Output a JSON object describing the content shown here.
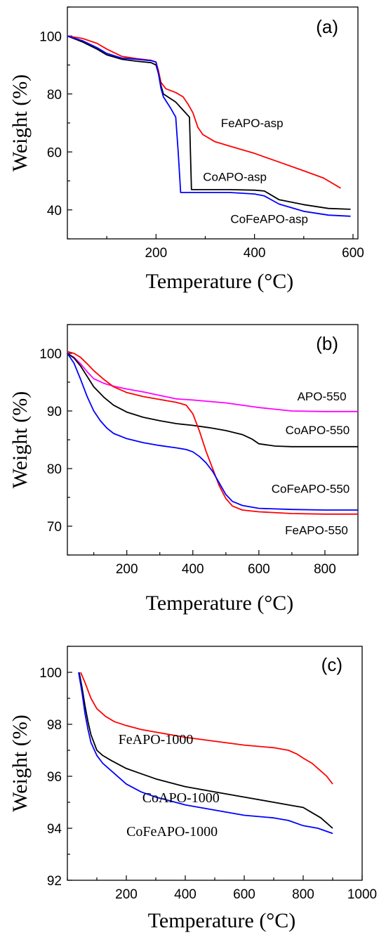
{
  "chart_data": [
    {
      "id": "a",
      "type": "line",
      "panel_label": "(a)",
      "xlabel": "Temperature",
      "xunit": "(°C)",
      "ylabel": "Weight (%)",
      "xlim": [
        20,
        610
      ],
      "ylim": [
        30,
        110
      ],
      "xticks": [
        200,
        400,
        600
      ],
      "yticks": [
        40,
        60,
        80,
        100
      ],
      "label_font": "sans",
      "series": [
        {
          "name": "FeAPO-asp",
          "color": "#ff0000",
          "x": [
            20,
            50,
            80,
            100,
            130,
            160,
            190,
            200,
            205,
            210,
            220,
            240,
            255,
            265,
            275,
            285,
            295,
            320,
            360,
            400,
            450,
            500,
            540,
            575
          ],
          "y": [
            100,
            99.2,
            97.5,
            95.5,
            93,
            92.2,
            91.6,
            91,
            88,
            84,
            81.8,
            80.5,
            79,
            76.5,
            73.5,
            68.5,
            66,
            63.5,
            61.5,
            59.5,
            56.5,
            53.5,
            51,
            47.5
          ]
        },
        {
          "name": "CoAPO-asp",
          "color": "#000000",
          "x": [
            20,
            50,
            80,
            100,
            130,
            160,
            190,
            200,
            205,
            210,
            215,
            240,
            260,
            268,
            272,
            280,
            300,
            350,
            400,
            420,
            450,
            500,
            550,
            595
          ],
          "y": [
            100,
            98,
            95.5,
            93.5,
            92,
            91.3,
            90.8,
            90,
            87,
            83,
            80,
            77.2,
            73.5,
            72,
            47,
            47,
            47,
            47,
            46.8,
            46.5,
            43.5,
            41.8,
            40.5,
            40.2
          ]
        },
        {
          "name": "CoFeAPO-asp",
          "color": "#0000ff",
          "x": [
            20,
            50,
            80,
            100,
            130,
            160,
            190,
            200,
            205,
            210,
            215,
            230,
            240,
            245,
            250,
            255,
            300,
            350,
            400,
            420,
            450,
            500,
            550,
            595
          ],
          "y": [
            100,
            98.4,
            96,
            94,
            92.4,
            92,
            91.5,
            91,
            87,
            82,
            79,
            75,
            72,
            60,
            46,
            46,
            46,
            46,
            45.5,
            44.8,
            42,
            39.5,
            38.2,
            37.8
          ]
        }
      ],
      "labels": [
        {
          "text": "FeAPO-asp",
          "x": 395,
          "y": 68.5
        },
        {
          "text": "CoAPO-asp",
          "x": 360,
          "y": 50
        },
        {
          "text": "CoFeAPO-asp",
          "x": 430,
          "y": 35.5
        }
      ]
    },
    {
      "id": "b",
      "type": "line",
      "panel_label": "(b)",
      "xlabel": "Temperature",
      "xunit": "(°C)",
      "ylabel": "Weight (%)",
      "xlim": [
        20,
        900
      ],
      "ylim": [
        65,
        105
      ],
      "xticks": [
        200,
        400,
        600,
        800
      ],
      "yticks": [
        70,
        80,
        90,
        100
      ],
      "label_font": "sans",
      "series": [
        {
          "name": "APO-550",
          "color": "#ff00ff",
          "x": [
            20,
            40,
            60,
            80,
            100,
            130,
            160,
            200,
            250,
            300,
            350,
            400,
            500,
            600,
            700,
            800,
            900
          ],
          "y": [
            100,
            99.3,
            98.2,
            96.8,
            95.6,
            94.8,
            94.3,
            93.8,
            93.3,
            92.7,
            92.1,
            91.9,
            91.4,
            90.6,
            90.0,
            89.9,
            89.9
          ]
        },
        {
          "name": "CoAPO-550",
          "color": "#000000",
          "x": [
            20,
            40,
            60,
            80,
            100,
            130,
            160,
            200,
            250,
            300,
            350,
            400,
            450,
            500,
            550,
            580,
            600,
            650,
            700,
            800,
            900
          ],
          "y": [
            100,
            99.2,
            97.8,
            96,
            94.2,
            92.4,
            91,
            89.8,
            88.9,
            88.3,
            87.8,
            87.5,
            87.1,
            86.6,
            85.9,
            85.1,
            84.3,
            83.9,
            83.8,
            83.8,
            83.8
          ]
        },
        {
          "name": "FeAPO-550",
          "color": "#ff0000",
          "x": [
            20,
            40,
            60,
            80,
            100,
            130,
            160,
            200,
            250,
            300,
            350,
            380,
            400,
            420,
            440,
            460,
            480,
            500,
            520,
            550,
            600,
            700,
            800,
            900
          ],
          "y": [
            100.3,
            100,
            99.3,
            98.2,
            97,
            95.5,
            94.2,
            93.2,
            92.5,
            92,
            91.5,
            91,
            89.5,
            86.5,
            83,
            80,
            77,
            74.8,
            73.5,
            72.8,
            72.5,
            72.2,
            72.1,
            72.1
          ]
        },
        {
          "name": "CoFeAPO-550",
          "color": "#0000ff",
          "x": [
            20,
            40,
            60,
            80,
            100,
            120,
            140,
            160,
            200,
            250,
            300,
            350,
            380,
            400,
            420,
            440,
            460,
            480,
            500,
            520,
            550,
            600,
            700,
            800,
            900
          ],
          "y": [
            100,
            98.3,
            95.5,
            92.5,
            90,
            88.3,
            87,
            86.1,
            85.2,
            84.5,
            84,
            83.6,
            83.3,
            82.9,
            82.1,
            81,
            79.5,
            77.5,
            75.5,
            74.3,
            73.6,
            73.1,
            72.9,
            72.8,
            72.8
          ]
        }
      ],
      "labels": [
        {
          "text": "APO-550",
          "x": 865,
          "y": 91.8,
          "anchor": "end"
        },
        {
          "text": "CoAPO-550",
          "x": 875,
          "y": 86,
          "anchor": "end"
        },
        {
          "text": "CoFeAPO-550",
          "x": 875,
          "y": 75.8,
          "anchor": "end"
        },
        {
          "text": "FeAPO-550",
          "x": 870,
          "y": 68.6,
          "anchor": "end"
        }
      ]
    },
    {
      "id": "c",
      "type": "line",
      "panel_label": "(c)",
      "xlabel": "Temperature",
      "xunit": "(°C)",
      "ylabel": "Weight (%)",
      "xlim": [
        0,
        1000
      ],
      "ylim": [
        92,
        101
      ],
      "xticks": [
        200,
        400,
        600,
        800,
        1000
      ],
      "yticks": [
        92,
        94,
        96,
        98,
        100
      ],
      "label_font": "serif",
      "series": [
        {
          "name": "FeAPO-1000",
          "color": "#ff0000",
          "x": [
            45,
            60,
            80,
            100,
            130,
            160,
            200,
            250,
            300,
            400,
            500,
            600,
            700,
            750,
            780,
            800,
            830,
            860,
            880,
            900
          ],
          "y": [
            100,
            99.6,
            99,
            98.6,
            98.3,
            98.1,
            97.95,
            97.8,
            97.7,
            97.5,
            97.35,
            97.2,
            97.1,
            97.0,
            96.85,
            96.7,
            96.5,
            96.2,
            96.0,
            95.7
          ]
        },
        {
          "name": "CoAPO-1000",
          "color": "#000000",
          "x": [
            40,
            50,
            60,
            70,
            80,
            100,
            120,
            150,
            200,
            250,
            300,
            400,
            500,
            600,
            700,
            750,
            800,
            830,
            860,
            880,
            900
          ],
          "y": [
            100,
            99.4,
            98.7,
            98.1,
            97.6,
            97.0,
            96.8,
            96.6,
            96.3,
            96.1,
            95.9,
            95.6,
            95.4,
            95.2,
            95.0,
            94.9,
            94.8,
            94.6,
            94.4,
            94.2,
            94.0
          ]
        },
        {
          "name": "CoFeAPO-1000",
          "color": "#0000ff",
          "x": [
            38,
            50,
            60,
            70,
            80,
            100,
            120,
            150,
            200,
            250,
            300,
            400,
            500,
            600,
            700,
            750,
            800,
            850,
            900
          ],
          "y": [
            100,
            99.2,
            98.4,
            97.8,
            97.3,
            96.8,
            96.5,
            96.2,
            95.7,
            95.4,
            95.2,
            94.9,
            94.7,
            94.5,
            94.4,
            94.3,
            94.1,
            94.0,
            93.8
          ]
        }
      ],
      "labels": [
        {
          "text": "FeAPO-1000",
          "x": 300,
          "y": 97.25
        },
        {
          "text": "CoAPO-1000",
          "x": 385,
          "y": 95.0
        },
        {
          "text": "CoFeAPO-1000",
          "x": 355,
          "y": 93.7
        }
      ]
    }
  ]
}
